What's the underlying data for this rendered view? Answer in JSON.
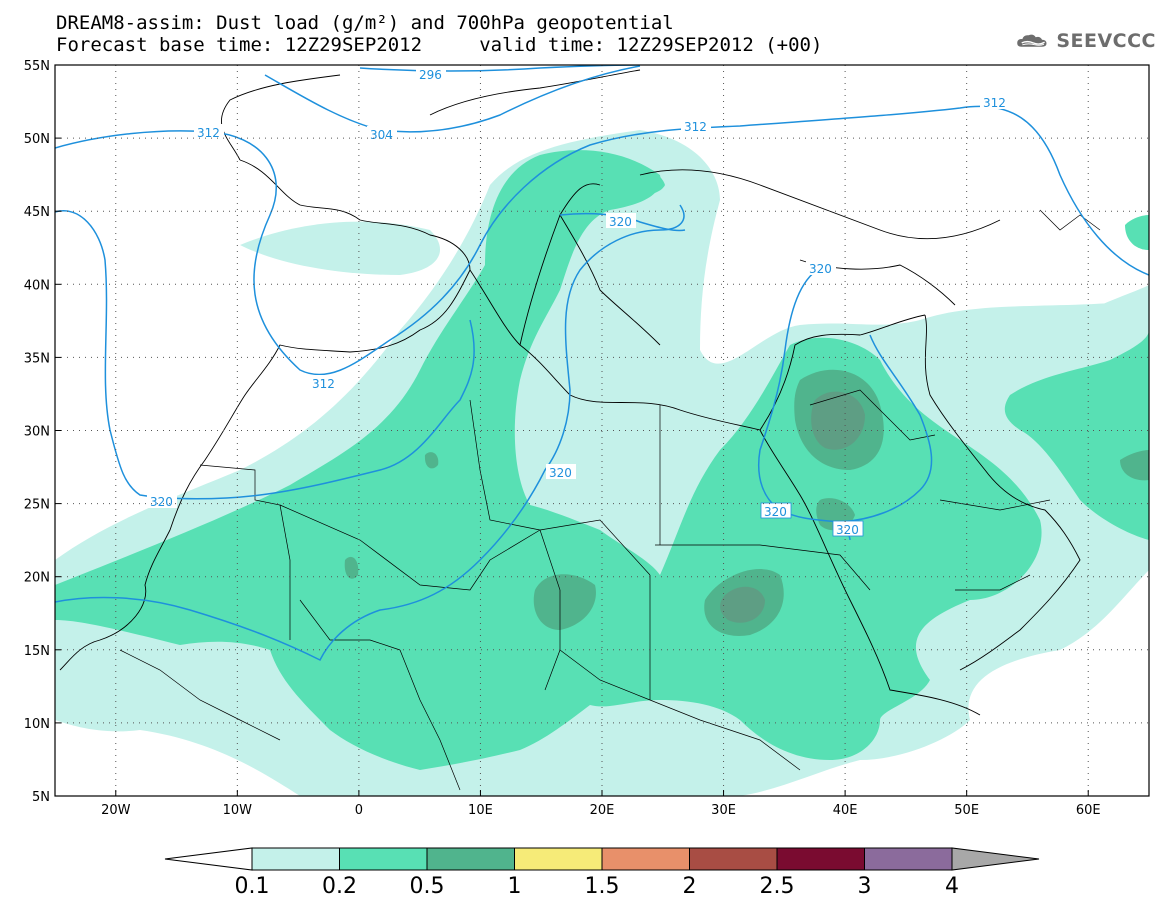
{
  "title": {
    "line1": "DREAM8-assim: Dust load (g/m²) and 700hPa geopotential",
    "line2": "Forecast base time: 12Z29SEP2012     valid time: 12Z29SEP2012 (+00)"
  },
  "logo": {
    "text": "SEEVCCC",
    "icon": "cloud-icon"
  },
  "axes": {
    "lat_labels": [
      "55N",
      "50N",
      "45N",
      "40N",
      "35N",
      "30N",
      "25N",
      "20N",
      "15N",
      "10N",
      "5N"
    ],
    "lon_labels": [
      "20W",
      "10W",
      "0",
      "10E",
      "20E",
      "30E",
      "40E",
      "50E",
      "60E"
    ],
    "lat_range": [
      5,
      55
    ],
    "lon_range": [
      -25,
      65
    ],
    "grid": "dotted"
  },
  "colorbar": {
    "labels": [
      "0.1",
      "0.2",
      "0.5",
      "1",
      "1.5",
      "2",
      "2.5",
      "3",
      "4"
    ],
    "colors": [
      "#c4f1ea",
      "#58e0b4",
      "#50b48d",
      "#f6eb78",
      "#e8906a",
      "#a84d44",
      "#7a0b30",
      "#8b6b9c",
      "#a8a8a8"
    ]
  },
  "contours": {
    "color": "#1e90dc",
    "labels": [
      "296",
      "304",
      "312",
      "312",
      "312",
      "312",
      "320",
      "320",
      "320",
      "320",
      "320",
      "320"
    ]
  },
  "dust_colors": {
    "low": "#c4f1ea",
    "mid": "#58e0b4",
    "high": "#50b48d",
    "peak": "#6a8c7e"
  }
}
